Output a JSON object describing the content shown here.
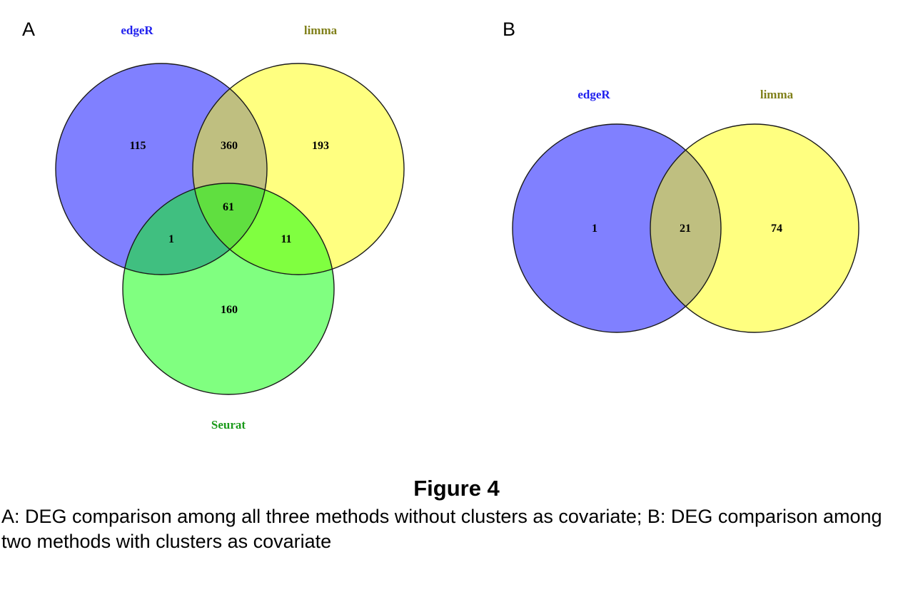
{
  "panel_a": {
    "letter": "A",
    "sets": {
      "edger": "edgeR",
      "limma": "limma",
      "seurat": "Seurat"
    },
    "counts": {
      "edger_only": "115",
      "edger_limma": "360",
      "limma_only": "193",
      "all_three": "61",
      "edger_seurat": "1",
      "limma_seurat": "11",
      "seurat_only": "160"
    }
  },
  "panel_b": {
    "letter": "B",
    "sets": {
      "edger": "edgeR",
      "limma": "limma"
    },
    "counts": {
      "edger_only": "1",
      "edger_limma": "21",
      "limma_only": "74"
    }
  },
  "colors": {
    "edger": "#8080ff",
    "limma": "#ffff80",
    "seurat": "#80ff80",
    "edger_limma": "#bfbf80",
    "edger_seurat": "#40bf80",
    "limma_seurat": "#80ff40",
    "all_three": "#60df40",
    "edger_label": "#2020ee",
    "limma_label": "#80801a",
    "seurat_label": "#1a9a1a"
  },
  "figure": {
    "title": "Figure 4",
    "caption": "A: DEG comparison among all three methods without clusters as covariate; B: DEG comparison among two methods with clusters as covariate"
  }
}
